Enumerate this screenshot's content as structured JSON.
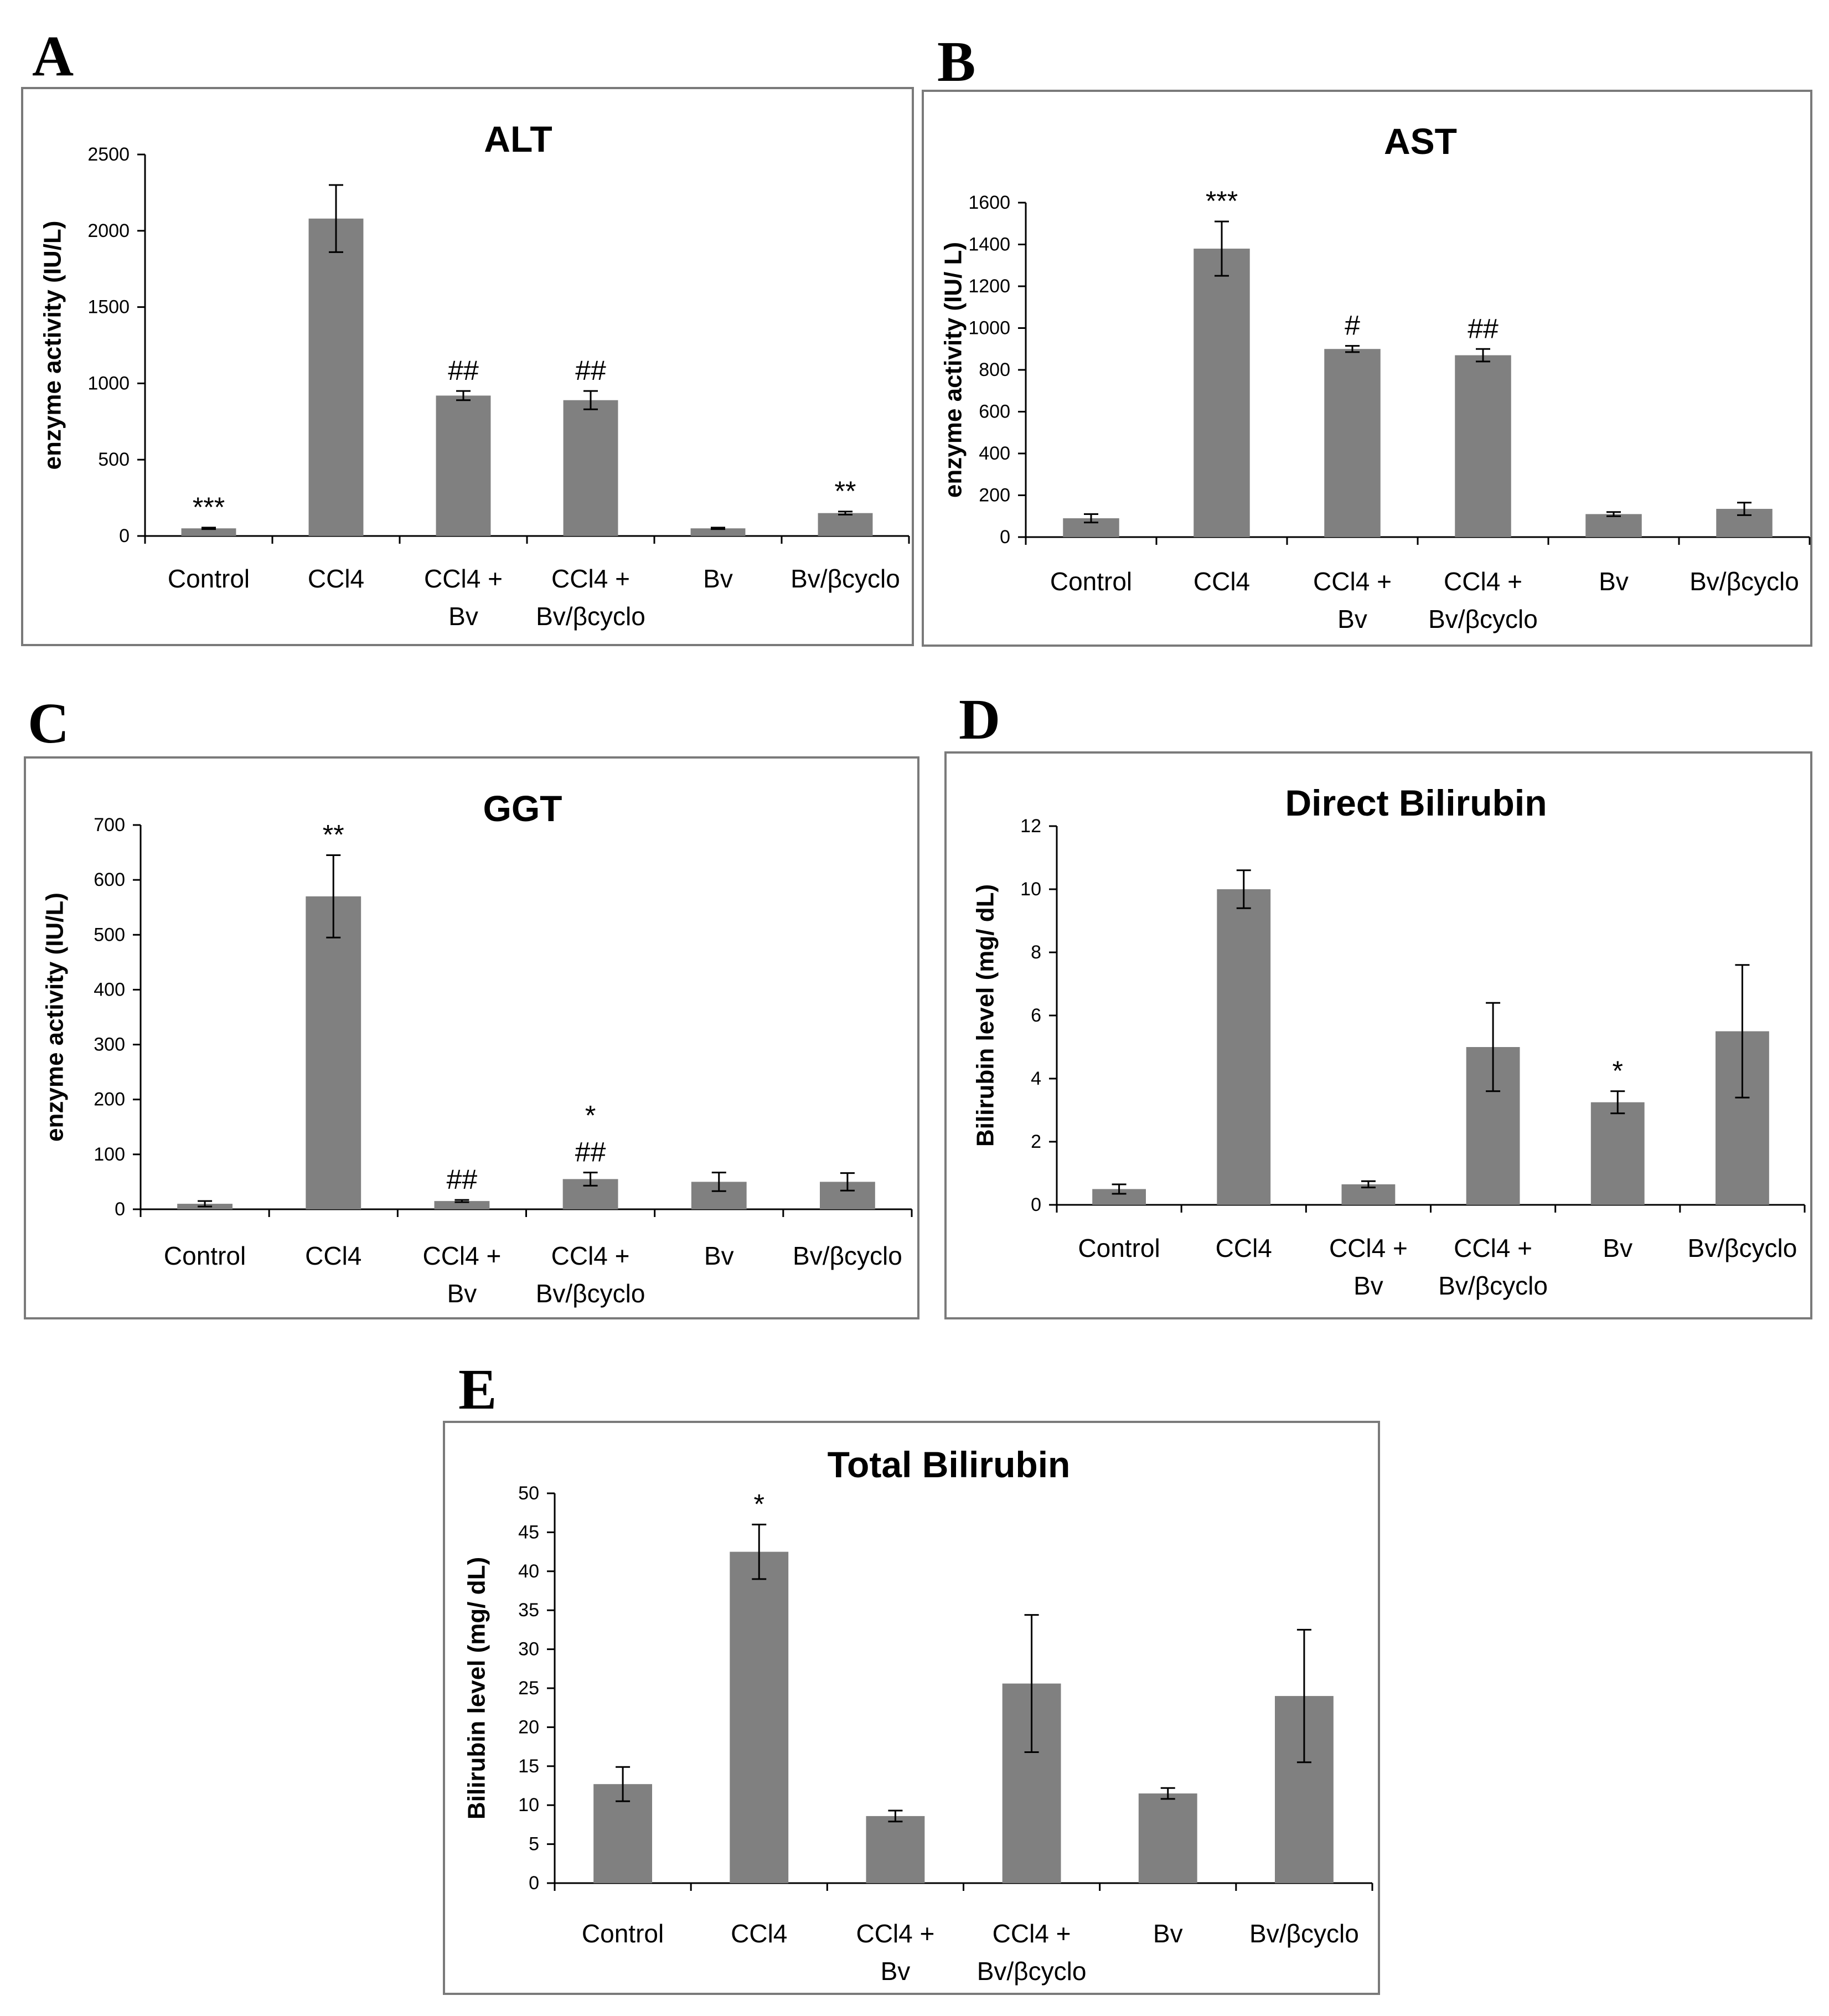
{
  "figure": {
    "bar_color": "#808080",
    "axis_color": "#000000",
    "frame_color": "#7a7a7a"
  },
  "chart_data": [
    {
      "id": "A",
      "panel_label": "A",
      "type": "bar",
      "title": "ALT",
      "ylabel": "enzyme activity (IU/L)",
      "xlabel": "",
      "ylim": [
        0,
        2500
      ],
      "yticks": [
        0,
        500,
        1000,
        1500,
        2000,
        2500
      ],
      "categories": [
        [
          "Control"
        ],
        [
          "CCl4"
        ],
        [
          "CCl4 +",
          "Bv"
        ],
        [
          "CCl4 +",
          "Bv/βcyclo"
        ],
        [
          "Bv"
        ],
        [
          "Bv/βcyclo"
        ]
      ],
      "values": [
        50,
        2080,
        920,
        890,
        50,
        150
      ],
      "errors": [
        5,
        220,
        30,
        60,
        5,
        10
      ],
      "annotations": [
        [
          "***"
        ],
        [],
        [
          "##"
        ],
        [
          "##"
        ],
        [],
        [
          "**"
        ]
      ]
    },
    {
      "id": "B",
      "panel_label": "B",
      "type": "bar",
      "title": "AST",
      "ylabel": "enzyme activity (IU/ L)",
      "xlabel": "",
      "ylim": [
        0,
        1600
      ],
      "yticks": [
        0,
        200,
        400,
        600,
        800,
        1000,
        1200,
        1400,
        1600
      ],
      "categories": [
        [
          "Control"
        ],
        [
          "CCl4"
        ],
        [
          "CCl4 +",
          "Bv"
        ],
        [
          "CCl4 +",
          "Bv/βcyclo"
        ],
        [
          "Bv"
        ],
        [
          "Bv/βcyclo"
        ]
      ],
      "values": [
        90,
        1380,
        900,
        870,
        110,
        135
      ],
      "errors": [
        20,
        130,
        15,
        30,
        10,
        30
      ],
      "annotations": [
        [],
        [
          "***"
        ],
        [
          "#"
        ],
        [
          "##"
        ],
        [],
        []
      ]
    },
    {
      "id": "C",
      "panel_label": "C",
      "type": "bar",
      "title": "GGT",
      "ylabel": "enzyme activity (IU/L)",
      "xlabel": "",
      "ylim": [
        0,
        700
      ],
      "yticks": [
        0,
        100,
        200,
        300,
        400,
        500,
        600,
        700
      ],
      "categories": [
        [
          "Control"
        ],
        [
          "CCl4"
        ],
        [
          "CCl4 +",
          "Bv"
        ],
        [
          "CCl4 +",
          "Bv/βcyclo"
        ],
        [
          "Bv"
        ],
        [
          "Bv/βcyclo"
        ]
      ],
      "values": [
        10,
        570,
        15,
        55,
        50,
        50
      ],
      "errors": [
        5,
        75,
        2,
        12,
        17,
        16
      ],
      "annotations": [
        [],
        [
          "**"
        ],
        [
          "##"
        ],
        [
          "*",
          "##"
        ],
        [],
        []
      ]
    },
    {
      "id": "D",
      "panel_label": "D",
      "type": "bar",
      "title": "Direct Bilirubin",
      "ylabel": "Bilirubin level (mg/ dL)",
      "xlabel": "",
      "ylim": [
        0,
        12
      ],
      "yticks": [
        0,
        2,
        4,
        6,
        8,
        10,
        12
      ],
      "categories": [
        [
          "Control"
        ],
        [
          "CCl4"
        ],
        [
          "CCl4 +",
          "Bv"
        ],
        [
          "CCl4 +",
          "Bv/βcyclo"
        ],
        [
          "Bv"
        ],
        [
          "Bv/βcyclo"
        ]
      ],
      "values": [
        0.5,
        10.0,
        0.65,
        5.0,
        3.25,
        5.5
      ],
      "errors": [
        0.15,
        0.6,
        0.1,
        1.4,
        0.35,
        2.1
      ],
      "annotations": [
        [],
        [],
        [],
        [],
        [
          "*"
        ],
        []
      ]
    },
    {
      "id": "E",
      "panel_label": "E",
      "type": "bar",
      "title": "Total Bilirubin",
      "ylabel": "Bilirubin level (mg/ dL)",
      "xlabel": "",
      "ylim": [
        0,
        50
      ],
      "yticks": [
        0,
        5,
        10,
        15,
        20,
        25,
        30,
        35,
        40,
        45,
        50
      ],
      "categories": [
        [
          "Control"
        ],
        [
          "CCl4"
        ],
        [
          "CCl4 +",
          "Bv"
        ],
        [
          "CCl4 +",
          "Bv/βcyclo"
        ],
        [
          "Bv"
        ],
        [
          "Bv/βcyclo"
        ]
      ],
      "values": [
        12.7,
        42.5,
        8.6,
        25.6,
        11.5,
        24.0
      ],
      "errors": [
        2.2,
        3.5,
        0.7,
        8.8,
        0.7,
        8.5
      ],
      "annotations": [
        [],
        [
          "*"
        ],
        [],
        [],
        [],
        []
      ]
    }
  ]
}
